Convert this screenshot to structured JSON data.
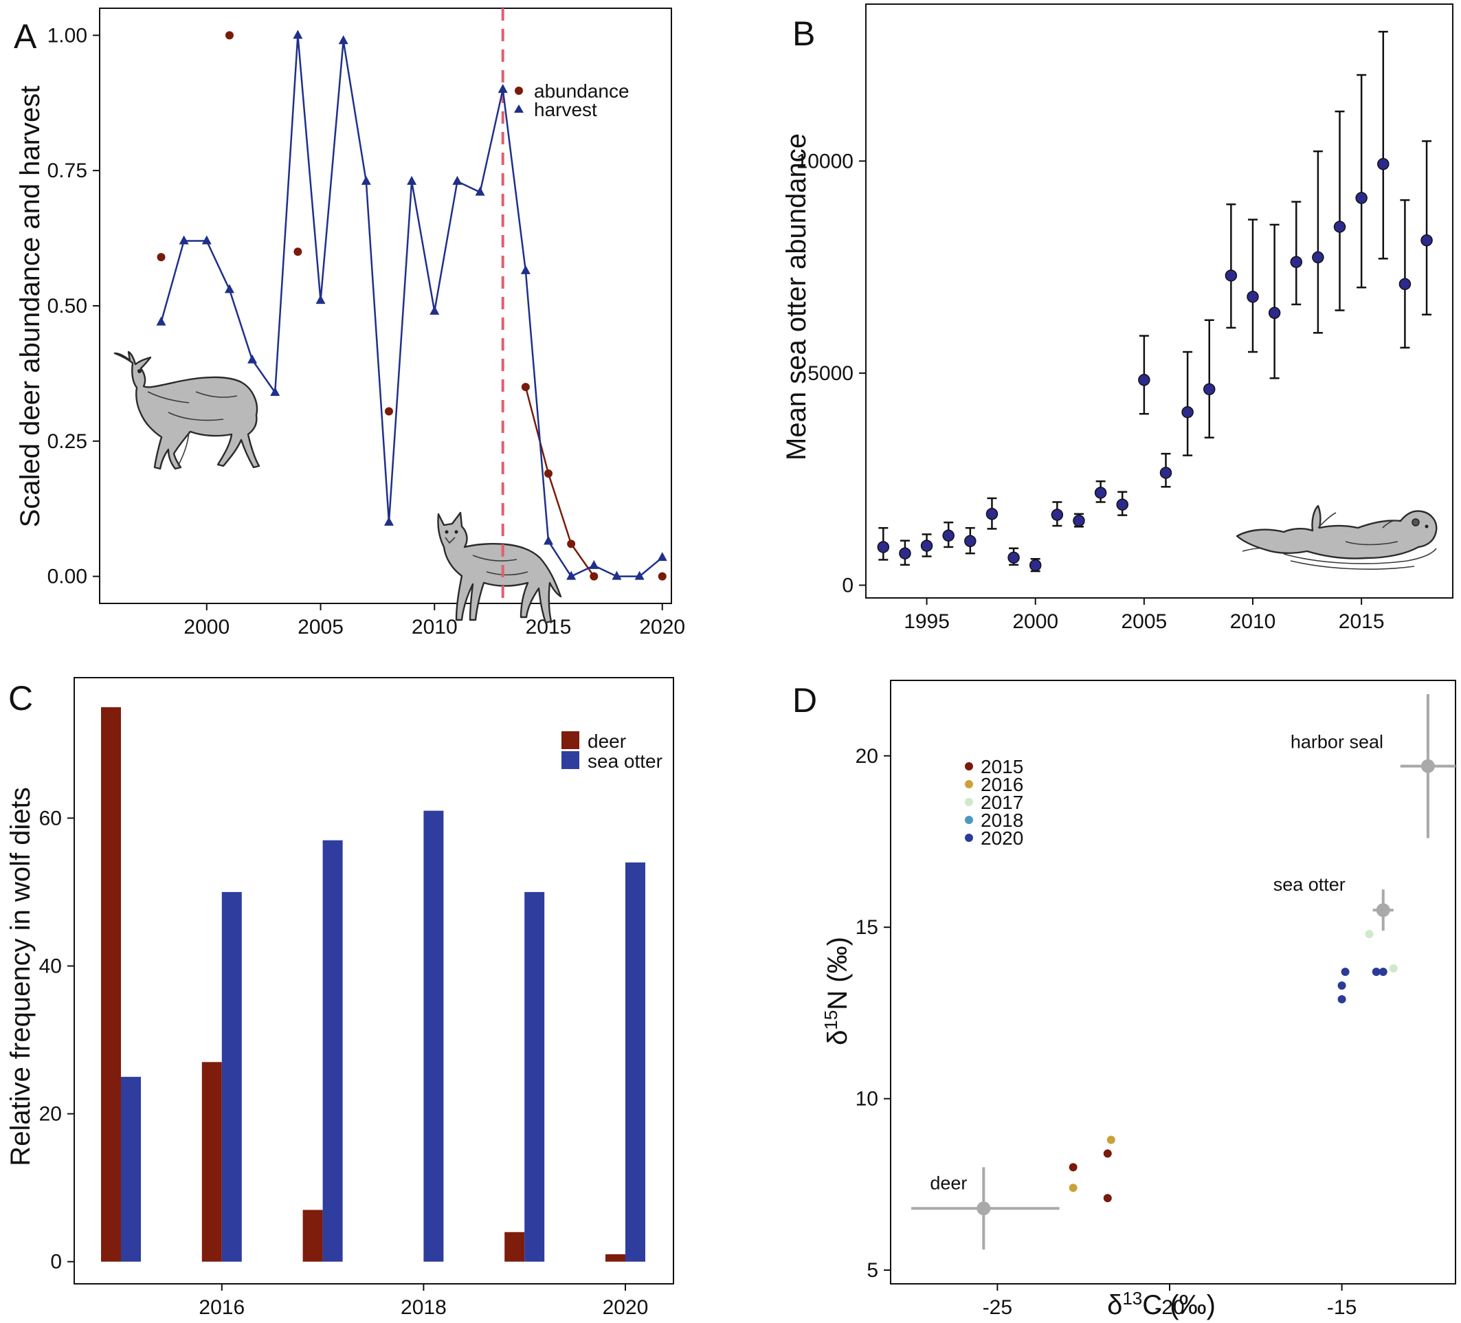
{
  "panels": {
    "A": {
      "letter": "A"
    },
    "B": {
      "letter": "B"
    },
    "C": {
      "letter": "C"
    },
    "D": {
      "letter": "D"
    }
  },
  "colors": {
    "abundance": "#7a1a0a",
    "harvest": "#1f2f8a",
    "dashed_line": "#e06070",
    "deer_bar": "#7e1d0c",
    "otter_bar": "#2f3d9e",
    "otter_point": "#2c2a8c",
    "year_2015": "#7a1a0a",
    "year_2016": "#c8a23a",
    "year_2017": "#cdebc8",
    "year_2018": "#4a9ac0",
    "year_2020": "#2c3a9a",
    "reference": "#a9a9a9"
  },
  "icons": [
    "deer-illustration",
    "wolf-illustration",
    "sea-otter-illustration"
  ],
  "chart_data": [
    {
      "panel": "A",
      "type": "line",
      "ylabel": "Scaled deer abundance and harvest",
      "xlabel": "",
      "xlim": [
        1995.3,
        2020.4
      ],
      "ylim": [
        -0.05,
        1.05
      ],
      "xticks": [
        2000,
        2005,
        2010,
        2015,
        2020
      ],
      "yticks": [
        0.0,
        0.25,
        0.5,
        0.75,
        1.0
      ],
      "ytick_labels": [
        "0.00",
        "0.25",
        "0.50",
        "0.75",
        "1.00"
      ],
      "vline": 2013,
      "legend": {
        "position": "top-right",
        "entries": [
          "abundance",
          "harvest"
        ]
      },
      "series": [
        {
          "name": "abundance",
          "marker": "circle",
          "points": [
            [
              1998,
              0.59
            ],
            [
              2001,
              1.0
            ],
            [
              2004,
              0.6
            ],
            [
              2008,
              0.305
            ],
            [
              2014,
              0.35
            ],
            [
              2015,
              0.19
            ],
            [
              2016,
              0.06
            ],
            [
              2017,
              0.0
            ],
            [
              2020,
              0.0
            ]
          ],
          "connected_from_year": 2014
        },
        {
          "name": "harvest",
          "marker": "triangle",
          "points": [
            [
              1998,
              0.47
            ],
            [
              1999,
              0.62
            ],
            [
              2000,
              0.62
            ],
            [
              2001,
              0.53
            ],
            [
              2002,
              0.4
            ],
            [
              2003,
              0.34
            ],
            [
              2004,
              1.0
            ],
            [
              2005,
              0.51
            ],
            [
              2006,
              0.99
            ],
            [
              2007,
              0.73
            ],
            [
              2008,
              0.1
            ],
            [
              2009,
              0.73
            ],
            [
              2010,
              0.49
            ],
            [
              2011,
              0.73
            ],
            [
              2012,
              0.71
            ],
            [
              2013,
              0.9
            ],
            [
              2014,
              0.565
            ],
            [
              2015,
              0.065
            ],
            [
              2016,
              0.0
            ],
            [
              2017,
              0.02
            ],
            [
              2018,
              0.0
            ],
            [
              2019,
              0.0
            ],
            [
              2020,
              0.035
            ]
          ]
        }
      ]
    },
    {
      "panel": "B",
      "type": "scatter",
      "ylabel": "Mean sea otter abundance",
      "xlabel": "",
      "xlim": [
        1992.2,
        2019.2
      ],
      "ylim": [
        -300,
        13700
      ],
      "xticks": [
        1995,
        2000,
        2005,
        2010,
        2015
      ],
      "yticks": [
        0,
        5000,
        10000
      ],
      "points": [
        {
          "x": 1993,
          "y": 900,
          "lo": 600,
          "hi": 1350
        },
        {
          "x": 1994,
          "y": 750,
          "lo": 480,
          "hi": 1050
        },
        {
          "x": 1995,
          "y": 930,
          "lo": 680,
          "hi": 1200
        },
        {
          "x": 1996,
          "y": 1170,
          "lo": 900,
          "hi": 1480
        },
        {
          "x": 1997,
          "y": 1040,
          "lo": 750,
          "hi": 1350
        },
        {
          "x": 1998,
          "y": 1680,
          "lo": 1330,
          "hi": 2050
        },
        {
          "x": 1999,
          "y": 650,
          "lo": 480,
          "hi": 870
        },
        {
          "x": 2000,
          "y": 470,
          "lo": 330,
          "hi": 620
        },
        {
          "x": 2001,
          "y": 1660,
          "lo": 1400,
          "hi": 1960
        },
        {
          "x": 2002,
          "y": 1520,
          "lo": 1380,
          "hi": 1680
        },
        {
          "x": 2003,
          "y": 2180,
          "lo": 1960,
          "hi": 2450
        },
        {
          "x": 2004,
          "y": 1900,
          "lo": 1650,
          "hi": 2200
        },
        {
          "x": 2005,
          "y": 4840,
          "lo": 4040,
          "hi": 5880
        },
        {
          "x": 2006,
          "y": 2650,
          "lo": 2320,
          "hi": 3100
        },
        {
          "x": 2007,
          "y": 4080,
          "lo": 3060,
          "hi": 5500
        },
        {
          "x": 2008,
          "y": 4620,
          "lo": 3480,
          "hi": 6250
        },
        {
          "x": 2009,
          "y": 7300,
          "lo": 6070,
          "hi": 8980
        },
        {
          "x": 2010,
          "y": 6800,
          "lo": 5500,
          "hi": 8620
        },
        {
          "x": 2011,
          "y": 6420,
          "lo": 4880,
          "hi": 8500
        },
        {
          "x": 2012,
          "y": 7620,
          "lo": 6620,
          "hi": 9040
        },
        {
          "x": 2013,
          "y": 7730,
          "lo": 5950,
          "hi": 10230
        },
        {
          "x": 2014,
          "y": 8450,
          "lo": 6480,
          "hi": 11170
        },
        {
          "x": 2015,
          "y": 9130,
          "lo": 7020,
          "hi": 12030
        },
        {
          "x": 2016,
          "y": 9930,
          "lo": 7700,
          "hi": 13050
        },
        {
          "x": 2017,
          "y": 7100,
          "lo": 5600,
          "hi": 9080
        },
        {
          "x": 2018,
          "y": 8130,
          "lo": 6380,
          "hi": 10470
        }
      ]
    },
    {
      "panel": "C",
      "type": "bar",
      "ylabel": "Relative frequency in wolf diets",
      "xlabel": "",
      "categories": [
        2015,
        2016,
        2017,
        2018,
        2019,
        2020
      ],
      "xtick_labels": [
        "2016",
        "2018",
        "2020"
      ],
      "xtick_values": [
        2016,
        2018,
        2020
      ],
      "ylim": [
        -3,
        79
      ],
      "yticks": [
        0,
        20,
        40,
        60
      ],
      "legend": {
        "position": "top-right",
        "entries": [
          "deer",
          "sea otter"
        ]
      },
      "series": [
        {
          "name": "deer",
          "values": [
            75,
            27,
            7,
            0,
            4,
            1
          ]
        },
        {
          "name": "sea otter",
          "values": [
            25,
            50,
            57,
            61,
            50,
            54
          ]
        }
      ]
    },
    {
      "panel": "D",
      "type": "scatter",
      "xlabel": "δ13C (‰)",
      "ylabel": "δ15N (‰)",
      "xlim": [
        -28.1,
        -11.7
      ],
      "ylim": [
        4.6,
        22.2
      ],
      "xticks": [
        -25,
        -20,
        -15
      ],
      "yticks": [
        5,
        10,
        15,
        20
      ],
      "legend": {
        "position": "top-left",
        "entries": [
          "2015",
          "2016",
          "2017",
          "2018",
          "2020"
        ]
      },
      "points": [
        {
          "year": "2015",
          "x": -22.8,
          "y": 8.0
        },
        {
          "year": "2015",
          "x": -21.8,
          "y": 8.4
        },
        {
          "year": "2015",
          "x": -21.8,
          "y": 7.1
        },
        {
          "year": "2016",
          "x": -22.8,
          "y": 7.4
        },
        {
          "year": "2016",
          "x": -21.7,
          "y": 8.8
        },
        {
          "year": "2017",
          "x": -14.2,
          "y": 14.8
        },
        {
          "year": "2017",
          "x": -13.5,
          "y": 13.8
        },
        {
          "year": "2020",
          "x": -15.0,
          "y": 13.3
        },
        {
          "year": "2020",
          "x": -15.0,
          "y": 12.9
        },
        {
          "year": "2020",
          "x": -14.9,
          "y": 13.7
        },
        {
          "year": "2020",
          "x": -14.0,
          "y": 13.7
        },
        {
          "year": "2020",
          "x": -13.8,
          "y": 13.7
        }
      ],
      "reference_groups": [
        {
          "name": "deer",
          "x": -25.4,
          "y": 6.8,
          "x_lo": -27.5,
          "x_hi": -23.2,
          "y_lo": 5.6,
          "y_hi": 8.0
        },
        {
          "name": "sea otter",
          "x": -13.8,
          "y": 15.5,
          "x_lo": -14.1,
          "x_hi": -13.5,
          "y_lo": 14.9,
          "y_hi": 16.1
        },
        {
          "name": "harbor seal",
          "x": -12.5,
          "y": 19.7,
          "x_lo": -13.3,
          "x_hi": -11.7,
          "y_lo": 17.6,
          "y_hi": 21.8
        }
      ]
    }
  ]
}
